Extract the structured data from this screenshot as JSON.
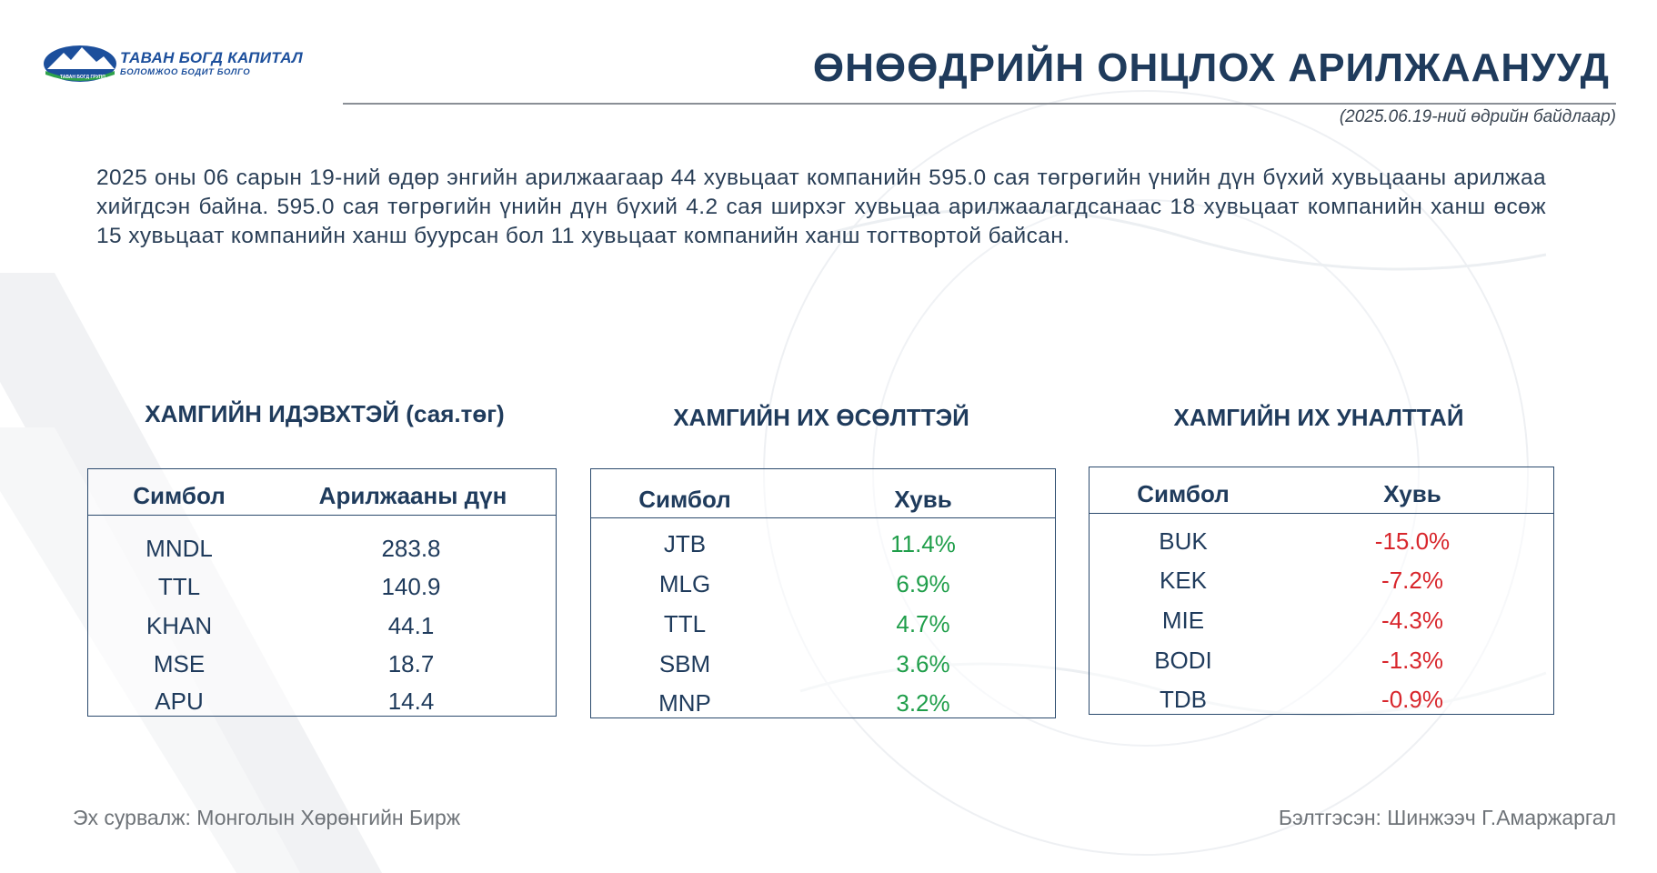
{
  "header": {
    "logo_name": "ТАВАН БОГД КАПИТАЛ",
    "logo_tagline": "БОЛОМЖОО БОДИТ БОЛГО",
    "logo_small": "ТАВАН БОГД ГРУПП",
    "title": "ӨНӨӨДРИЙН ОНЦЛОХ АРИЛЖААНУУД",
    "date_note": "(2025.06.19-ний өдрийн байдлаар)"
  },
  "summary": "2025 оны 06 сарын 19-ний өдөр энгийн арилжаагаар 44 хувьцаат компанийн 595.0 сая төгрөгийн үнийн дүн бүхий хувьцааны арилжаа хийгдсэн байна. 595.0 сая төгрөгийн үнийн дүн бүхий 4.2 сая ширхэг хувьцаа арилжаалагдсанаас 18 хувьцаат компанийн ханш өсөж 15 хувьцаат компанийн ханш буурсан бол 11 хувьцаат компанийн ханш тогтвортой байсан.",
  "tables": {
    "active": {
      "title": "ХАМГИЙН ИДЭВХТЭЙ (сая.төг)",
      "col1": "Симбол",
      "col2": "Арилжааны дүн",
      "rows": [
        {
          "symbol": "MNDL",
          "value": "283.8"
        },
        {
          "symbol": "TTL",
          "value": "140.9"
        },
        {
          "symbol": "KHAN",
          "value": "44.1"
        },
        {
          "symbol": "MSE",
          "value": "18.7"
        },
        {
          "symbol": "APU",
          "value": "14.4"
        }
      ]
    },
    "gainers": {
      "title": "ХАМГИЙН ИХ ӨСӨЛТТЭЙ",
      "col1": "Симбол",
      "col2": "Хувь",
      "rows": [
        {
          "symbol": "JTB",
          "value": "11.4%"
        },
        {
          "symbol": "MLG",
          "value": "6.9%"
        },
        {
          "symbol": "TTL",
          "value": "4.7%"
        },
        {
          "symbol": "SBM",
          "value": "3.6%"
        },
        {
          "symbol": "MNP",
          "value": "3.2%"
        }
      ]
    },
    "losers": {
      "title": "ХАМГИЙН ИХ УНАЛТТАЙ",
      "col1": "Симбол",
      "col2": "Хувь",
      "rows": [
        {
          "symbol": "BUK",
          "value": "-15.0%"
        },
        {
          "symbol": "KEK",
          "value": "-7.2%"
        },
        {
          "symbol": "MIE",
          "value": "-4.3%"
        },
        {
          "symbol": "BODI",
          "value": "-1.3%"
        },
        {
          "symbol": "TDB",
          "value": "-0.9%"
        }
      ]
    }
  },
  "footer": {
    "source": "Эх сурвалж:  Монголын Хөрөнгийн Бирж",
    "prepared_by": "Бэлтгэсэн: Шинжээч Г.Амаржаргал"
  },
  "colors": {
    "title": "#1f3b5c",
    "positive": "#1f9e4a",
    "negative": "#d8262c",
    "border": "#2b4a6d"
  }
}
